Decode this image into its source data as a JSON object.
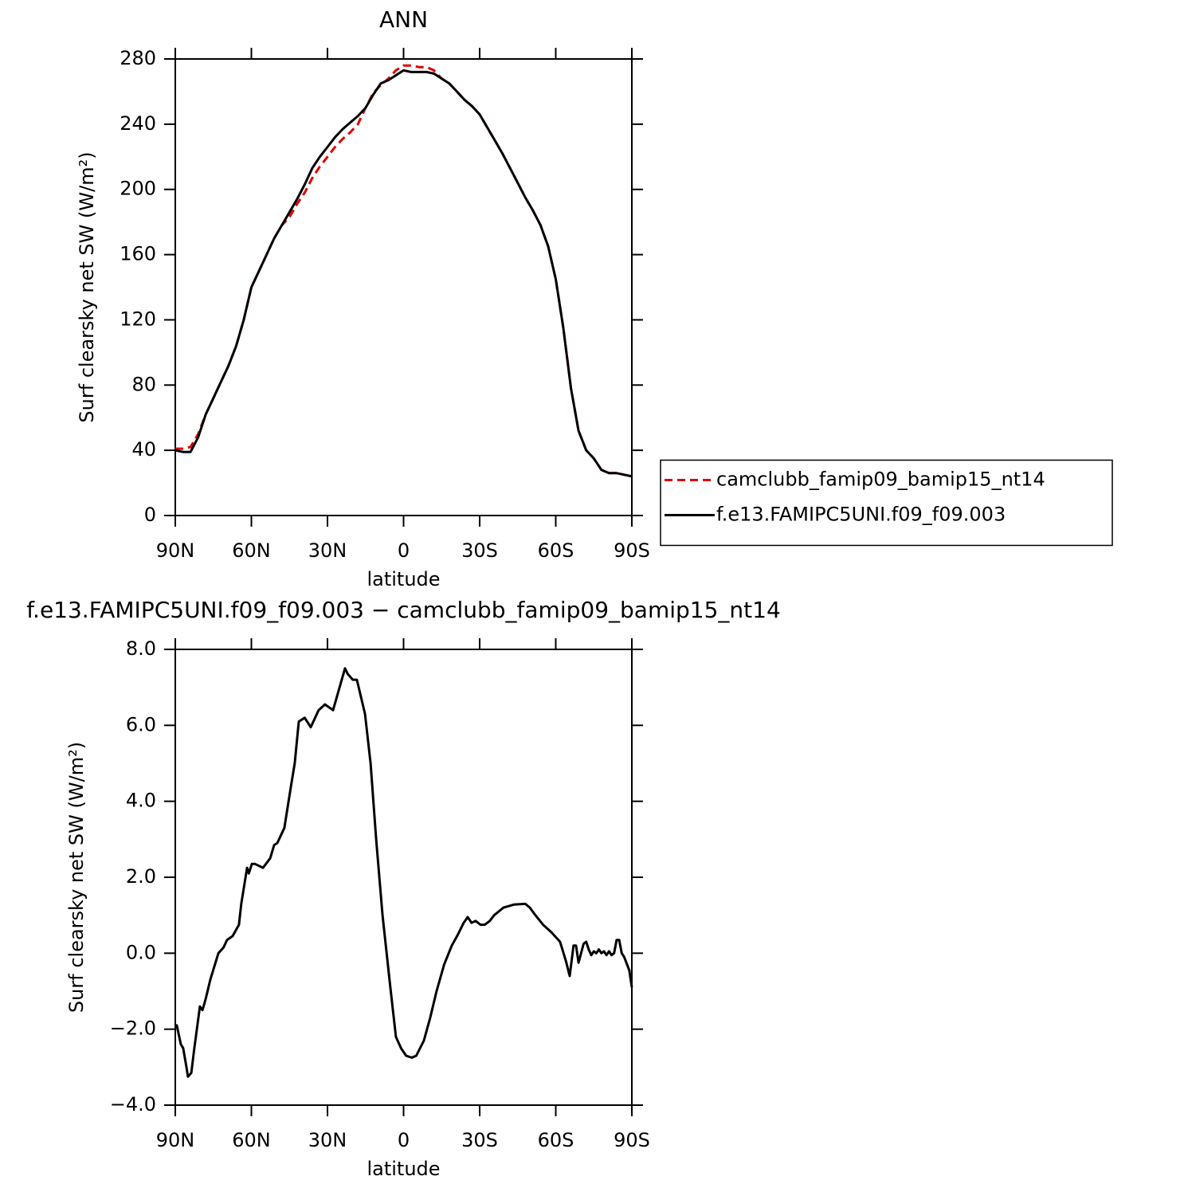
{
  "chart_data": [
    {
      "type": "line",
      "title": "ANN",
      "x_label": "latitude",
      "y_label": "Surf clearsky net SW (W/m²)",
      "x": [
        90,
        87,
        84,
        81,
        78,
        75,
        72,
        69,
        66,
        63,
        60,
        57,
        54,
        51,
        48,
        45,
        42,
        39,
        36,
        33,
        30,
        27,
        24,
        21,
        18,
        15,
        12,
        9,
        6,
        3,
        0,
        -3,
        -6,
        -9,
        -12,
        -15,
        -18,
        -21,
        -24,
        -27,
        -30,
        -33,
        -36,
        -39,
        -42,
        -45,
        -48,
        -51,
        -54,
        -57,
        -60,
        -63,
        -66,
        -69,
        -72,
        -75,
        -78,
        -81,
        -84,
        -87,
        -90
      ],
      "series": [
        {
          "name": "camclubb_famip09_bamip15_nt14",
          "color": "#e00000",
          "dash": true,
          "values": [
            41,
            41,
            42,
            50,
            62,
            72,
            82,
            92,
            104,
            120,
            140,
            150,
            160,
            170,
            178,
            183,
            191,
            198,
            207,
            214,
            220,
            226,
            231,
            235,
            240,
            250,
            259,
            264,
            268,
            273,
            276,
            276,
            275,
            275,
            273,
            268,
            265,
            260,
            255,
            251,
            246,
            238,
            230,
            222,
            213,
            204,
            195,
            187,
            178,
            165,
            145,
            115,
            78,
            52,
            40,
            35,
            28,
            26,
            26,
            25,
            24
          ]
        },
        {
          "name": "f.e13.FAMIPC5UNI.f09_f09.003",
          "color": "#000000",
          "dash": false,
          "values": [
            40,
            39,
            39,
            48,
            62,
            72,
            82,
            92,
            104,
            120,
            140,
            150,
            160,
            170,
            178,
            186,
            194,
            203,
            213,
            220,
            226,
            232,
            237,
            241,
            245,
            250,
            258,
            265,
            267,
            270,
            273,
            272,
            272,
            272,
            271,
            268,
            265,
            260,
            255,
            251,
            246,
            238,
            230,
            222,
            213,
            204,
            195,
            187,
            178,
            165,
            145,
            115,
            78,
            52,
            40,
            35,
            28,
            26,
            26,
            25,
            24
          ]
        }
      ],
      "xlim": [
        90,
        -90
      ],
      "xticks": [
        {
          "value": 90,
          "label": "90N"
        },
        {
          "value": 60,
          "label": "60N"
        },
        {
          "value": 30,
          "label": "30N"
        },
        0,
        {
          "value": -30,
          "label": "30S"
        },
        {
          "value": -60,
          "label": "60S"
        },
        {
          "value": -90,
          "label": "90S"
        }
      ],
      "ylim": [
        0,
        280
      ],
      "yticks": [
        0,
        40,
        80,
        120,
        160,
        200,
        240,
        280
      ],
      "legend": "right"
    },
    {
      "type": "line",
      "title": "f.e13.FAMIPC5UNI.f09_f09.003 − camclubb_famip09_bamip15_nt14",
      "x_label": "latitude",
      "y_label": "Surf clearsky net SW (W/m²)",
      "x": [
        90,
        89.4,
        87.8,
        86.9,
        85.6,
        85,
        83.7,
        82.5,
        80.3,
        79.3,
        78,
        76.2,
        73,
        71,
        69.6,
        67.4,
        64.9,
        64,
        61.7,
        61,
        59.8,
        58.6,
        55.4,
        52.6,
        51,
        49.8,
        47,
        44.4,
        42.9,
        41.3,
        39,
        36.6,
        33.5,
        31,
        27.8,
        23.1,
        22,
        20,
        18.4,
        15.2,
        13,
        10.8,
        8.3,
        5.2,
        3,
        1,
        -1,
        -3.3,
        -5,
        -8,
        -10.5,
        -13,
        -16,
        -19,
        -21.5,
        -23.7,
        -25.3,
        -26.8,
        -28.4,
        -30.3,
        -32,
        -34,
        -35.7,
        -39.4,
        -43.5,
        -48,
        -49.8,
        -52,
        -55,
        -58.3,
        -61.7,
        -64,
        -65.5,
        -67,
        -68,
        -69,
        -70,
        -71,
        -72,
        -73,
        -74,
        -75,
        -76,
        -77,
        -78,
        -79,
        -80,
        -81,
        -82,
        -83,
        -84,
        -85,
        -86,
        -87,
        -89,
        -90
      ],
      "color": "#000000",
      "values": [
        -1.9,
        -1.9,
        -2.4,
        -2.5,
        -3.0,
        -3.25,
        -3.15,
        -2.5,
        -1.4,
        -1.5,
        -1.2,
        -0.7,
        0.0,
        0.15,
        0.35,
        0.45,
        0.75,
        1.3,
        2.25,
        2.1,
        2.35,
        2.35,
        2.25,
        2.5,
        2.85,
        2.9,
        3.3,
        4.4,
        5.0,
        6.1,
        6.2,
        5.95,
        6.4,
        6.55,
        6.4,
        7.5,
        7.35,
        7.2,
        7.2,
        6.3,
        5.0,
        3.0,
        1.0,
        -0.9,
        -2.2,
        -2.5,
        -2.7,
        -2.75,
        -2.7,
        -2.3,
        -1.7,
        -1.0,
        -0.3,
        0.2,
        0.5,
        0.8,
        0.95,
        0.8,
        0.85,
        0.75,
        0.75,
        0.85,
        1.0,
        1.2,
        1.28,
        1.3,
        1.2,
        1.0,
        0.75,
        0.55,
        0.3,
        -0.2,
        -0.6,
        0.2,
        0.2,
        -0.25,
        0.0,
        0.25,
        0.3,
        0.1,
        -0.05,
        0.05,
        0.0,
        0.1,
        0.0,
        0.05,
        -0.05,
        0.05,
        -0.05,
        0.0,
        0.35,
        0.35,
        0.0,
        -0.1,
        -0.45,
        -0.9
      ],
      "xlim": [
        90,
        -90
      ],
      "xticks": [
        {
          "value": 90,
          "label": "90N"
        },
        {
          "value": 60,
          "label": "60N"
        },
        {
          "value": 30,
          "label": "30N"
        },
        0,
        {
          "value": -30,
          "label": "30S"
        },
        {
          "value": -60,
          "label": "60S"
        },
        {
          "value": -90,
          "label": "90S"
        }
      ],
      "ylim": [
        -4,
        8
      ],
      "yticks": [
        {
          "value": -4,
          "label": "−4.0"
        },
        {
          "value": -2,
          "label": "−2.0"
        },
        {
          "value": 0,
          "label": "0.0"
        },
        {
          "value": 2,
          "label": "2.0"
        },
        {
          "value": 4,
          "label": "4.0"
        },
        {
          "value": 6,
          "label": "6.0"
        },
        {
          "value": 8,
          "label": "8.0"
        }
      ]
    }
  ]
}
